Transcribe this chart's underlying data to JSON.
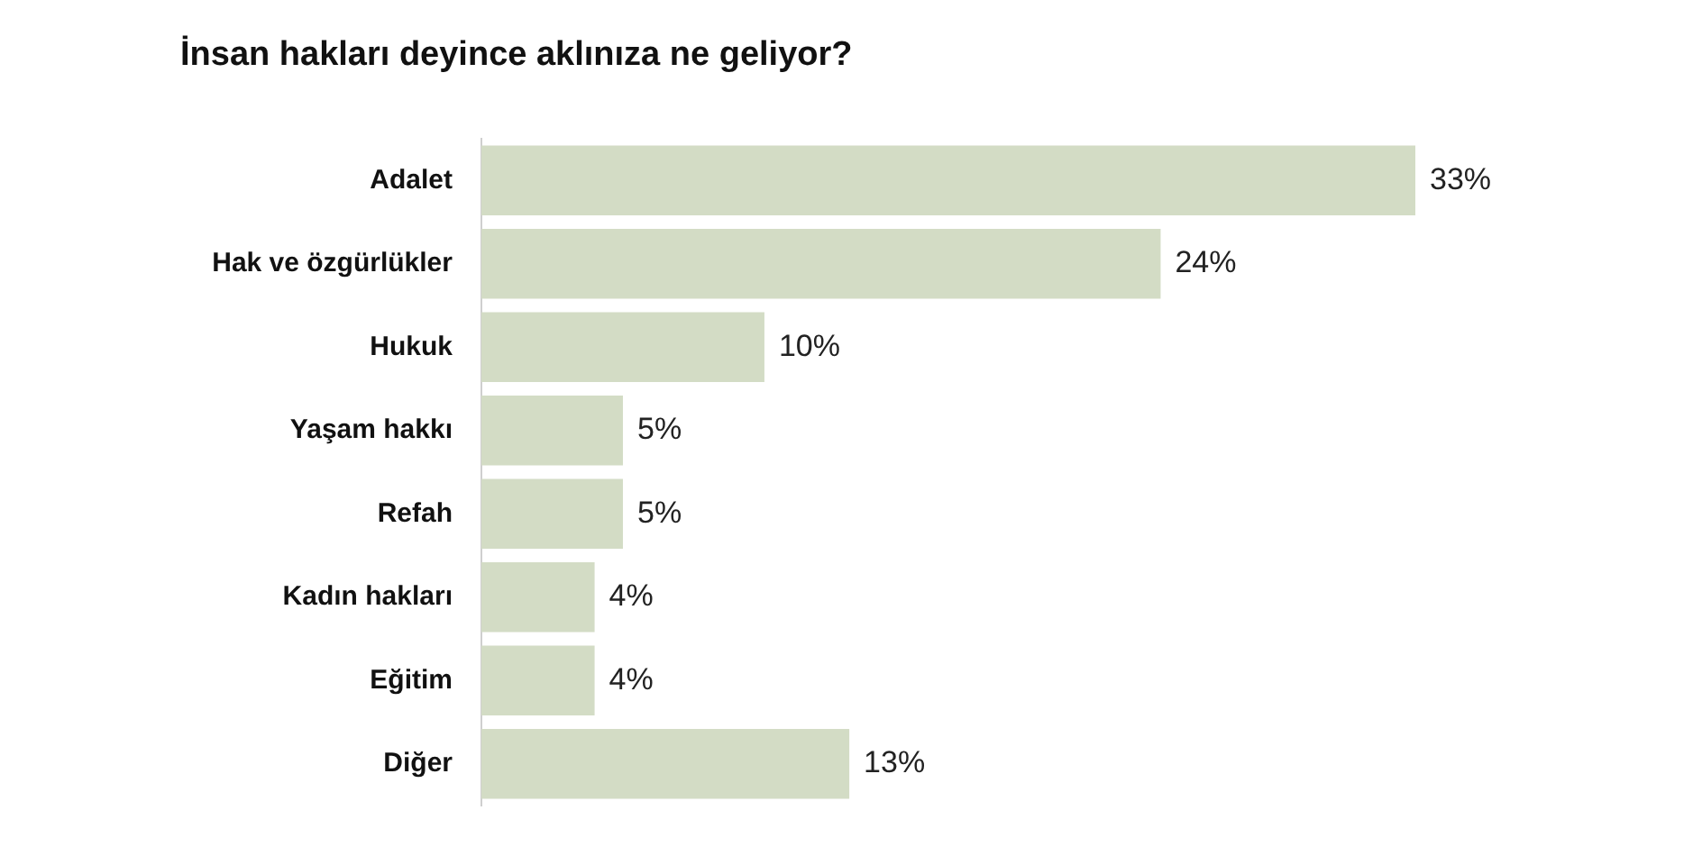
{
  "chart_data": {
    "type": "bar",
    "title": "İnsan hakları deyince aklınıza ne geliyor?",
    "categories": [
      "Adalet",
      "Hak ve özgürlükler",
      "Hukuk",
      "Yaşam hakkı",
      "Refah",
      "Kadın hakları",
      "Eğitim",
      "Diğer"
    ],
    "values": [
      33,
      24,
      10,
      5,
      5,
      4,
      4,
      13
    ],
    "value_labels": [
      "33%",
      "24%",
      "10%",
      "5%",
      "5%",
      "4%",
      "4%",
      "13%"
    ],
    "color": "#d3dcc5",
    "orientation": "horizontal"
  }
}
